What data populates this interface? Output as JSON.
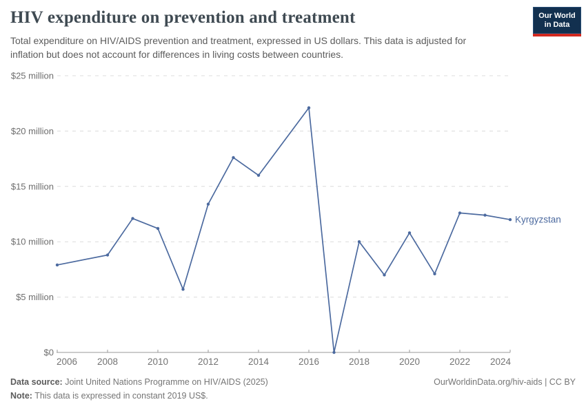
{
  "header": {
    "title": "HIV expenditure on prevention and treatment",
    "subtitle": "Total expenditure on HIV/AIDS prevention and treatment, expressed in US dollars. This data is adjusted for inflation but does not account for differences in living costs between countries.",
    "logo": {
      "line1": "Our World",
      "line2": "in Data",
      "bg_color": "#12304f",
      "stripe_color": "#d2291f"
    }
  },
  "chart_data": {
    "type": "line",
    "title": "HIV expenditure on prevention and treatment",
    "xlabel": "",
    "ylabel": "",
    "unit": "US$",
    "x_range": [
      2006,
      2024
    ],
    "ylim": [
      0,
      25000000
    ],
    "grid": "dashed horizontal",
    "legend_position": "end-of-line label",
    "x_ticks": [
      2006,
      2008,
      2010,
      2012,
      2014,
      2016,
      2018,
      2020,
      2022,
      2024
    ],
    "y_ticks": [
      {
        "value": 0,
        "label": "$0"
      },
      {
        "value": 5000000,
        "label": "$5 million"
      },
      {
        "value": 10000000,
        "label": "$10 million"
      },
      {
        "value": 15000000,
        "label": "$15 million"
      },
      {
        "value": 20000000,
        "label": "$20 million"
      },
      {
        "value": 25000000,
        "label": "$25 million"
      }
    ],
    "series": [
      {
        "name": "Kyrgyzstan",
        "color": "#4c6a9f",
        "points": [
          {
            "year": 2006,
            "value": 7900000
          },
          {
            "year": 2008,
            "value": 8800000
          },
          {
            "year": 2009,
            "value": 12100000
          },
          {
            "year": 2010,
            "value": 11200000
          },
          {
            "year": 2011,
            "value": 5700000
          },
          {
            "year": 2012,
            "value": 13400000
          },
          {
            "year": 2013,
            "value": 17600000
          },
          {
            "year": 2014,
            "value": 16000000
          },
          {
            "year": 2016,
            "value": 22100000
          },
          {
            "year": 2017,
            "value": 0
          },
          {
            "year": 2018,
            "value": 10000000
          },
          {
            "year": 2019,
            "value": 7000000
          },
          {
            "year": 2020,
            "value": 10800000
          },
          {
            "year": 2021,
            "value": 7100000
          },
          {
            "year": 2022,
            "value": 12600000
          },
          {
            "year": 2023,
            "value": 12400000
          },
          {
            "year": 2024,
            "value": 12000000
          }
        ]
      }
    ],
    "colors": {
      "grid": "#dcdcdc",
      "axis": "#999999",
      "tick_label": "#6e6e6e"
    }
  },
  "footer": {
    "datasource_label": "Data source:",
    "datasource_text": " Joint United Nations Programme on HIV/AIDS (2025)",
    "note_label": "Note:",
    "note_text": " This data is expressed in constant 2019 US$.",
    "attribution": "OurWorldinData.org/hiv-aids | CC BY"
  }
}
